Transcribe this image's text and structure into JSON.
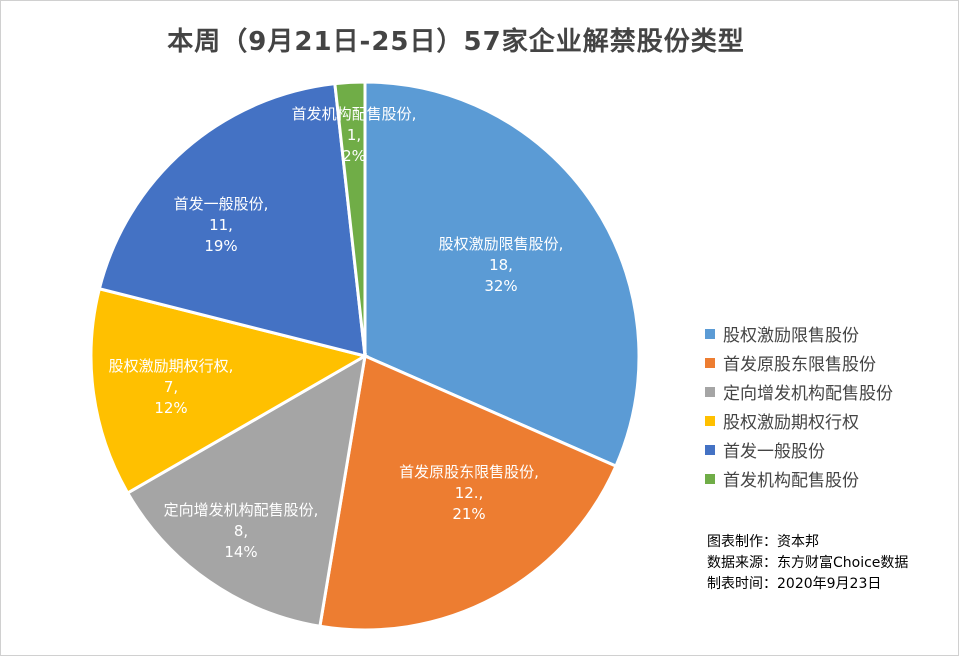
{
  "chart_data": {
    "type": "pie",
    "title": "本周（9月21日-25日）57家企业解禁股份类型",
    "slices": [
      {
        "name": "股权激励限售股份",
        "value": 18,
        "percent": "32%",
        "value_label": "18,",
        "color": "#5B9BD5"
      },
      {
        "name": "首发原股东限售股份",
        "value": 12,
        "percent": "21%",
        "value_label": "12.,",
        "color": "#ED7D31"
      },
      {
        "name": "定向增发机构配售股份",
        "value": 8,
        "percent": "14%",
        "value_label": "8,",
        "color": "#A5A5A5"
      },
      {
        "name": "股权激励期权行权",
        "value": 7,
        "percent": "12%",
        "value_label": "7,",
        "color": "#FFC000"
      },
      {
        "name": "首发一般股份",
        "value": 11,
        "percent": "19%",
        "value_label": "11,",
        "color": "#4472C4"
      },
      {
        "name": "首发机构配售股份",
        "value": 1,
        "percent": "2%",
        "value_label": "1,",
        "color": "#70AD47"
      }
    ],
    "legend_position": "right"
  },
  "credits": {
    "made_by": "图表制作：资本邦",
    "source": "数据来源：东方财富Choice数据",
    "date": "制表时间：2020年9月23日"
  }
}
